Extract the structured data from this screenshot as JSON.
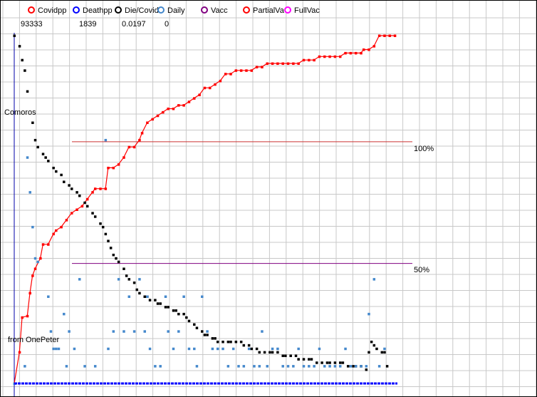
{
  "country": "Comoros",
  "source": "from OnePeter",
  "legend": [
    {
      "label": "Covidpp",
      "value": "93333",
      "color": "#ff0000"
    },
    {
      "label": "Deathpp",
      "value": "1839",
      "color": "#0000ff"
    },
    {
      "label": "Die/Covid",
      "value": "0.0197",
      "color": "#000000"
    },
    {
      "label": "Daily",
      "value": "0",
      "color": "#4488cc"
    },
    {
      "label": "Vacc",
      "value": "",
      "color": "#800080"
    },
    {
      "label": "PartialVa",
      "value": "",
      "color": "#ff0000"
    },
    {
      "label": "FullVac",
      "value": "",
      "color": "#ff00ff"
    }
  ],
  "chart_data": {
    "type": "scatter",
    "x_range": [
      0,
      147
    ],
    "y_range": [
      0,
      100
    ],
    "grid": true,
    "reference_lines": [
      {
        "label": "100%",
        "y": 69.5,
        "color": "#cc3333"
      },
      {
        "label": "50%",
        "y": 34.5,
        "color": "#800080"
      }
    ],
    "series": [
      {
        "name": "PartialVa",
        "color": "#ff0000",
        "connected": true,
        "points": [
          [
            0,
            0
          ],
          [
            2,
            9
          ],
          [
            3,
            19
          ],
          [
            5,
            19.4
          ],
          [
            6,
            26
          ],
          [
            7,
            31
          ],
          [
            8,
            33
          ],
          [
            10,
            36
          ],
          [
            11,
            40
          ],
          [
            13,
            40
          ],
          [
            15,
            43
          ],
          [
            16,
            44
          ],
          [
            18,
            45
          ],
          [
            20,
            47
          ],
          [
            22,
            49
          ],
          [
            24,
            50
          ],
          [
            26,
            51
          ],
          [
            28,
            53
          ],
          [
            30,
            55
          ],
          [
            31,
            56
          ],
          [
            33,
            56
          ],
          [
            35,
            56
          ],
          [
            36,
            62
          ],
          [
            38,
            62
          ],
          [
            40,
            63
          ],
          [
            42,
            65
          ],
          [
            44,
            68
          ],
          [
            46,
            68
          ],
          [
            48,
            70
          ],
          [
            49,
            72
          ],
          [
            51,
            75
          ],
          [
            53,
            76
          ],
          [
            55,
            77
          ],
          [
            57,
            78
          ],
          [
            59,
            79
          ],
          [
            61,
            79
          ],
          [
            63,
            80
          ],
          [
            65,
            80
          ],
          [
            67,
            81
          ],
          [
            69,
            82
          ],
          [
            71,
            83
          ],
          [
            73,
            85
          ],
          [
            75,
            85
          ],
          [
            77,
            86
          ],
          [
            79,
            87
          ],
          [
            81,
            89
          ],
          [
            83,
            89
          ],
          [
            85,
            90
          ],
          [
            87,
            90
          ],
          [
            89,
            90
          ],
          [
            91,
            90
          ],
          [
            93,
            91
          ],
          [
            95,
            91
          ],
          [
            97,
            92
          ],
          [
            99,
            92
          ],
          [
            101,
            92
          ],
          [
            103,
            92
          ],
          [
            105,
            92
          ],
          [
            107,
            92
          ],
          [
            109,
            92
          ],
          [
            111,
            93
          ],
          [
            113,
            93
          ],
          [
            115,
            93
          ],
          [
            117,
            94
          ],
          [
            119,
            94
          ],
          [
            121,
            94
          ],
          [
            123,
            94
          ],
          [
            125,
            94
          ],
          [
            127,
            95
          ],
          [
            129,
            95
          ],
          [
            131,
            95
          ],
          [
            133,
            95
          ],
          [
            134,
            96
          ],
          [
            136,
            96
          ],
          [
            138,
            97
          ],
          [
            140,
            100
          ],
          [
            142,
            100
          ],
          [
            144,
            100
          ],
          [
            146,
            100
          ]
        ]
      },
      {
        "name": "Die/Covid",
        "color": "#000000",
        "connected": false,
        "points": [
          [
            0,
            100
          ],
          [
            2,
            97
          ],
          [
            3,
            93
          ],
          [
            4,
            90
          ],
          [
            5,
            84
          ],
          [
            7,
            75
          ],
          [
            8,
            70
          ],
          [
            9,
            68
          ],
          [
            11,
            66
          ],
          [
            12,
            65
          ],
          [
            13,
            64
          ],
          [
            15,
            62
          ],
          [
            16,
            61
          ],
          [
            18,
            60
          ],
          [
            19,
            58
          ],
          [
            21,
            57
          ],
          [
            22,
            56
          ],
          [
            24,
            55
          ],
          [
            25,
            54
          ],
          [
            27,
            52
          ],
          [
            28,
            51
          ],
          [
            30,
            49
          ],
          [
            31,
            48
          ],
          [
            33,
            46
          ],
          [
            34,
            45
          ],
          [
            35,
            43
          ],
          [
            36,
            41
          ],
          [
            37,
            39
          ],
          [
            38,
            37
          ],
          [
            39,
            36
          ],
          [
            40,
            35
          ],
          [
            42,
            33
          ],
          [
            43,
            31
          ],
          [
            44,
            30
          ],
          [
            46,
            29
          ],
          [
            47,
            27
          ],
          [
            48,
            26
          ],
          [
            50,
            25
          ],
          [
            51,
            25
          ],
          [
            52,
            24
          ],
          [
            54,
            24
          ],
          [
            55,
            23
          ],
          [
            56,
            23
          ],
          [
            58,
            22
          ],
          [
            59,
            22
          ],
          [
            61,
            21
          ],
          [
            62,
            21
          ],
          [
            63,
            20
          ],
          [
            65,
            20
          ],
          [
            66,
            19
          ],
          [
            67,
            18
          ],
          [
            69,
            17
          ],
          [
            70,
            16
          ],
          [
            72,
            15
          ],
          [
            73,
            14
          ],
          [
            74,
            14
          ],
          [
            76,
            13
          ],
          [
            77,
            13
          ],
          [
            78,
            12
          ],
          [
            80,
            12
          ],
          [
            82,
            12
          ],
          [
            83,
            12
          ],
          [
            85,
            12
          ],
          [
            87,
            12
          ],
          [
            88,
            11
          ],
          [
            90,
            11
          ],
          [
            91,
            10
          ],
          [
            93,
            10
          ],
          [
            94,
            9
          ],
          [
            96,
            9
          ],
          [
            98,
            9
          ],
          [
            99,
            9
          ],
          [
            101,
            9
          ],
          [
            103,
            8
          ],
          [
            104,
            8
          ],
          [
            106,
            8
          ],
          [
            108,
            8
          ],
          [
            109,
            7
          ],
          [
            111,
            7
          ],
          [
            113,
            7
          ],
          [
            114,
            7
          ],
          [
            116,
            6
          ],
          [
            118,
            6
          ],
          [
            120,
            6
          ],
          [
            121,
            6
          ],
          [
            123,
            6
          ],
          [
            125,
            6
          ],
          [
            126,
            6
          ],
          [
            128,
            5
          ],
          [
            130,
            5
          ],
          [
            131,
            5
          ],
          [
            133,
            5
          ],
          [
            135,
            4
          ],
          [
            136,
            9
          ],
          [
            137,
            12
          ],
          [
            138,
            11
          ],
          [
            139,
            10
          ],
          [
            141,
            9
          ],
          [
            142,
            9
          ],
          [
            143,
            5
          ]
        ]
      },
      {
        "name": "Daily",
        "color": "#4488cc",
        "connected": false,
        "points": [
          [
            0,
            0
          ],
          [
            4,
            5
          ],
          [
            5,
            65
          ],
          [
            6,
            55
          ],
          [
            7,
            45
          ],
          [
            8,
            36
          ],
          [
            9,
            35
          ],
          [
            13,
            25
          ],
          [
            14,
            15
          ],
          [
            15,
            10
          ],
          [
            16,
            10
          ],
          [
            17,
            10
          ],
          [
            19,
            20
          ],
          [
            20,
            5
          ],
          [
            21,
            15
          ],
          [
            23,
            10
          ],
          [
            25,
            30
          ],
          [
            27,
            5
          ],
          [
            31,
            5
          ],
          [
            35,
            70
          ],
          [
            36,
            10
          ],
          [
            38,
            15
          ],
          [
            40,
            30
          ],
          [
            42,
            15
          ],
          [
            44,
            25
          ],
          [
            46,
            15
          ],
          [
            48,
            30
          ],
          [
            50,
            15
          ],
          [
            51,
            25
          ],
          [
            52,
            10
          ],
          [
            54,
            5
          ],
          [
            56,
            5
          ],
          [
            58,
            25
          ],
          [
            59,
            15
          ],
          [
            61,
            10
          ],
          [
            63,
            15
          ],
          [
            65,
            25
          ],
          [
            67,
            10
          ],
          [
            69,
            10
          ],
          [
            70,
            5
          ],
          [
            72,
            25
          ],
          [
            74,
            15
          ],
          [
            76,
            10
          ],
          [
            78,
            10
          ],
          [
            80,
            10
          ],
          [
            82,
            5
          ],
          [
            84,
            10
          ],
          [
            86,
            5
          ],
          [
            88,
            5
          ],
          [
            90,
            10
          ],
          [
            92,
            5
          ],
          [
            94,
            5
          ],
          [
            95,
            15
          ],
          [
            97,
            5
          ],
          [
            99,
            10
          ],
          [
            101,
            10
          ],
          [
            103,
            5
          ],
          [
            105,
            5
          ],
          [
            107,
            5
          ],
          [
            109,
            10
          ],
          [
            111,
            5
          ],
          [
            113,
            5
          ],
          [
            115,
            5
          ],
          [
            117,
            10
          ],
          [
            119,
            5
          ],
          [
            121,
            5
          ],
          [
            123,
            5
          ],
          [
            125,
            5
          ],
          [
            127,
            10
          ],
          [
            129,
            5
          ],
          [
            131,
            5
          ],
          [
            133,
            5
          ],
          [
            135,
            5
          ],
          [
            136,
            20
          ],
          [
            138,
            30
          ],
          [
            140,
            5
          ],
          [
            142,
            10
          ]
        ]
      },
      {
        "name": "Deathpp",
        "color": "#0000ff",
        "connected": false,
        "points": [
          [
            0,
            0
          ],
          [
            147,
            0
          ]
        ]
      }
    ]
  }
}
